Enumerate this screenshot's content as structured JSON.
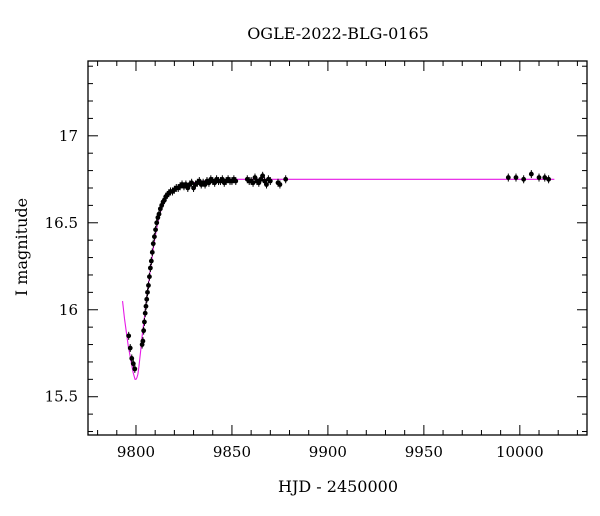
{
  "chart_data": {
    "type": "scatter",
    "title": "OGLE-2022-BLG-0165",
    "xlabel": "HJD - 2450000",
    "ylabel": "I magnitude",
    "xlim": [
      9775,
      10035
    ],
    "ylim": [
      17.43,
      15.28
    ],
    "y_inverted": true,
    "grid": false,
    "x_ticks": [
      9800,
      9850,
      9900,
      9950,
      10000
    ],
    "x_tick_labels": [
      "9800",
      "9850",
      "9900",
      "9950",
      "10000"
    ],
    "y_ticks": [
      15.5,
      16,
      16.5,
      17
    ],
    "y_tick_labels": [
      "15.5",
      "16",
      "16.5",
      "17"
    ],
    "colors": {
      "data": "#000000",
      "model": "#e619e6"
    },
    "series": [
      {
        "kind": "points",
        "x": [
          9796.2,
          9797.0,
          9797.8,
          9798.6,
          9799.4,
          9803.2,
          9803.6,
          9804.0,
          9804.4,
          9804.8,
          9805.2,
          9805.6,
          9806.0,
          9806.5,
          9807.0,
          9807.5,
          9808.0,
          9808.5,
          9809.0,
          9809.6,
          9810.2,
          9810.8,
          9811.4,
          9812.0,
          9812.7,
          9813.4,
          9814.1,
          9814.8,
          9815.5,
          9816.3,
          9817.1,
          9818.0,
          9819.0,
          9820.0,
          9821.0,
          9822.0,
          9823.0,
          9824.0,
          9825.0,
          9826.0,
          9827.0,
          9828.0,
          9829.0,
          9830.0,
          9831.0,
          9832.0,
          9833.0,
          9834.0,
          9835.0,
          9836.0,
          9837.0,
          9838.0,
          9839.0,
          9840.0,
          9841.0,
          9842.0,
          9843.0,
          9844.0,
          9845.0,
          9846.0,
          9847.0,
          9848.0,
          9849.0,
          9850.0,
          9851.0,
          9852.0,
          9858.0,
          9859.0,
          9860.0,
          9861.0,
          9862.0,
          9863.0,
          9864.0,
          9865.0,
          9866.0,
          9867.0,
          9868.0,
          9869.0,
          9870.0,
          9874.0,
          9875.0,
          9878.0,
          9994.0,
          9998.0,
          10002.0,
          10006.0,
          10010.0,
          10013.0,
          10015.0
        ],
        "y": [
          15.85,
          15.78,
          15.72,
          15.69,
          15.66,
          15.8,
          15.82,
          15.88,
          15.93,
          15.98,
          16.02,
          16.06,
          16.1,
          16.14,
          16.19,
          16.24,
          16.28,
          16.33,
          16.38,
          16.42,
          16.46,
          16.5,
          16.53,
          16.55,
          16.58,
          16.6,
          16.62,
          16.63,
          16.65,
          16.66,
          16.67,
          16.68,
          16.68,
          16.69,
          16.7,
          16.7,
          16.71,
          16.72,
          16.71,
          16.72,
          16.7,
          16.72,
          16.73,
          16.7,
          16.72,
          16.73,
          16.74,
          16.72,
          16.73,
          16.72,
          16.74,
          16.73,
          16.75,
          16.74,
          16.73,
          16.75,
          16.74,
          16.74,
          16.75,
          16.73,
          16.74,
          16.75,
          16.74,
          16.74,
          16.75,
          16.74,
          16.75,
          16.74,
          16.74,
          16.73,
          16.76,
          16.74,
          16.73,
          16.75,
          16.77,
          16.74,
          16.72,
          16.75,
          16.74,
          16.73,
          16.72,
          16.75,
          16.76,
          16.76,
          16.75,
          16.78,
          16.76,
          16.76,
          16.75
        ]
      },
      {
        "kind": "model-curve",
        "x": [
          9793.0,
          9794.0,
          9795.0,
          9796.0,
          9797.0,
          9798.0,
          9798.5,
          9799.0,
          9799.5,
          9800.0,
          9800.5,
          9801.0,
          9801.5,
          9802.0,
          9802.5,
          9803.0,
          9804.0,
          9805.0,
          9806.0,
          9807.0,
          9808.0,
          9809.0,
          9810.0,
          9811.0,
          9812.0,
          9813.0,
          9814.0,
          9815.0,
          9817.0,
          9819.0,
          9821.0,
          9823.0,
          9826.0,
          9830.0,
          9835.0,
          9840.0,
          9850.0,
          9870.0,
          9900.0,
          9950.0,
          10000.0,
          10018.0
        ],
        "y": [
          16.05,
          15.95,
          15.87,
          15.79,
          15.73,
          15.67,
          15.64,
          15.62,
          15.6,
          15.6,
          15.61,
          15.63,
          15.67,
          15.72,
          15.77,
          15.83,
          15.92,
          16.01,
          16.1,
          16.19,
          16.27,
          16.35,
          16.42,
          16.48,
          16.53,
          16.57,
          16.6,
          16.63,
          16.66,
          16.68,
          16.7,
          16.71,
          16.72,
          16.73,
          16.74,
          16.745,
          16.75,
          16.75,
          16.75,
          16.75,
          16.75,
          16.75
        ]
      }
    ]
  }
}
